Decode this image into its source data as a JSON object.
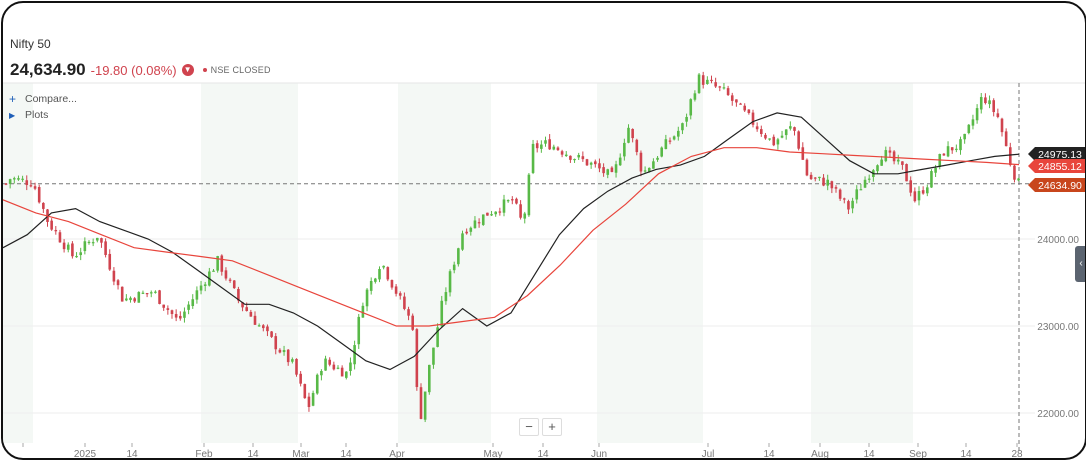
{
  "header": {
    "title": "Nifty 50",
    "price": "24,634.90",
    "change": "-19.80 (0.08%)",
    "status": "NSE CLOSED"
  },
  "toolbar": {
    "compare_label": "Compare...",
    "plots_label": "Plots"
  },
  "zoom": {
    "minus_label": "−",
    "plus_label": "+"
  },
  "colors": {
    "up": "#58b947",
    "down": "#d0434e",
    "ma_short": "#222222",
    "ma_long": "#e8453c",
    "last_price": "#c8461c"
  },
  "icons": [
    "plus-icon",
    "triangle-right-icon",
    "chevron-down-icon",
    "chevron-left-icon"
  ],
  "chart_data": {
    "type": "candlestick",
    "title": "Nifty 50",
    "x_tick_labels": [
      "",
      "2025",
      "14",
      "Feb",
      "14",
      "Mar",
      "14",
      "Apr",
      "May",
      "14",
      "Jun",
      "Jul",
      "14",
      "Aug",
      "14",
      "Sep",
      "14",
      "28"
    ],
    "y_tick_labels": [
      "24000.00",
      "23000.00",
      "22000.00"
    ],
    "ylim": [
      21750,
      25850
    ],
    "price_markers": [
      {
        "label": "24975.13",
        "value": 24975,
        "color": "#222222"
      },
      {
        "label": "24855.12",
        "value": 24855,
        "color": "#e8453c"
      },
      {
        "label": "24634.90",
        "value": 24635,
        "color": "#c8461c"
      }
    ],
    "series": [
      {
        "name": "",
        "type": "line",
        "color": "#222222",
        "values": [
          23900,
          24050,
          24300,
          24350,
          24200,
          24100,
          24000,
          23850,
          23650,
          23450,
          23250,
          23250,
          23150,
          23000,
          22800,
          22600,
          22500,
          22650,
          22950,
          23200,
          23000,
          23150,
          23600,
          24050,
          24350,
          24550,
          24700,
          24800,
          24850,
          24950,
          25150,
          25350,
          25450,
          25400,
          25150,
          24900,
          24750,
          24750,
          24800,
          24850,
          24900,
          24950,
          24975
        ]
      },
      {
        "name": "",
        "type": "line",
        "color": "#e8453c",
        "values": [
          24450,
          24300,
          24200,
          24050,
          23900,
          23850,
          23800,
          23750,
          23600,
          23450,
          23300,
          23150,
          23000,
          23000,
          23050,
          23100,
          23350,
          23700,
          24100,
          24400,
          24750,
          24950,
          25050,
          25050,
          25000,
          24980,
          24960,
          24940,
          24920,
          24900,
          24880,
          24855
        ]
      }
    ]
  }
}
